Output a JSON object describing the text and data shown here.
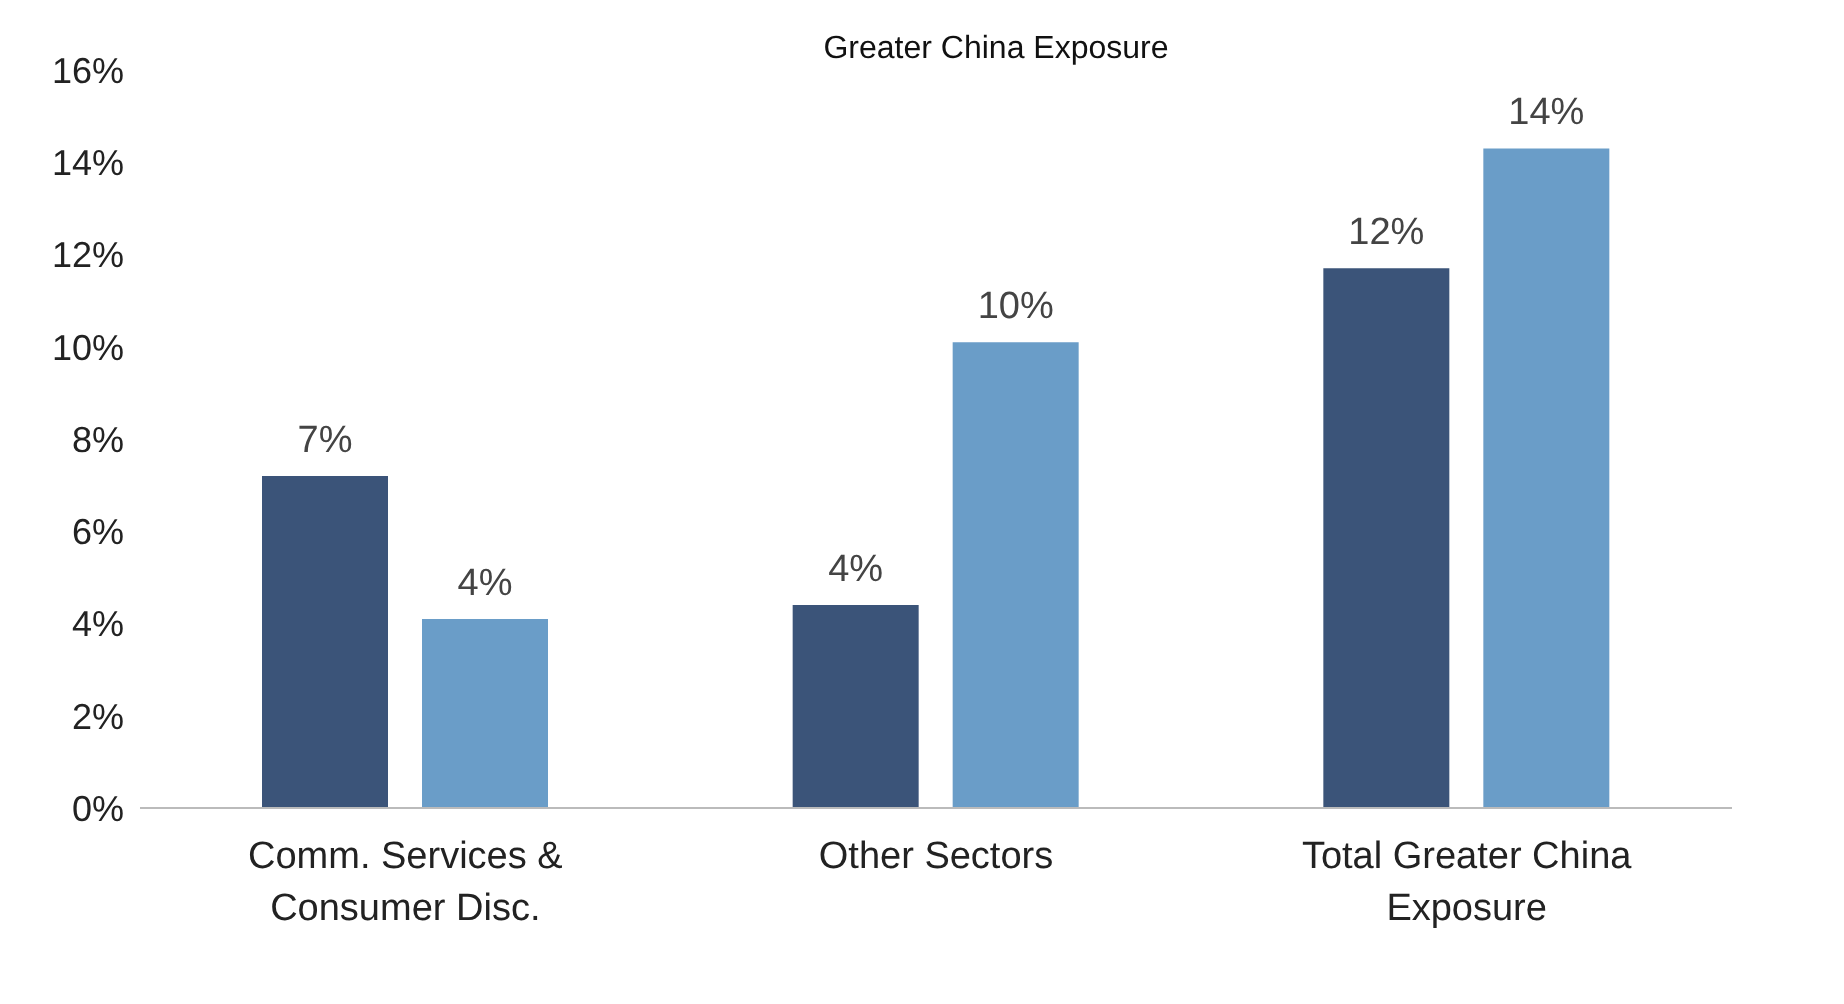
{
  "chart_data": {
    "type": "bar",
    "title": "Greater China Exposure",
    "categories": [
      "Comm. Services & Consumer Disc.",
      "Other Sectors",
      "Total Greater China Exposure"
    ],
    "series": [
      {
        "color": "#3b5479",
        "values": [
          7.2,
          4.4,
          11.7
        ],
        "value_labels": [
          "7%",
          "4%",
          "12%"
        ]
      },
      {
        "color": "#6a9dc8",
        "values": [
          4.1,
          10.1,
          14.3
        ],
        "value_labels": [
          "4%",
          "10%",
          "14%"
        ]
      }
    ],
    "ylim": [
      0,
      16
    ],
    "yticks": [
      {
        "value": 0,
        "label": "0%"
      },
      {
        "value": 2,
        "label": "2%"
      },
      {
        "value": 4,
        "label": "4%"
      },
      {
        "value": 6,
        "label": "6%"
      },
      {
        "value": 8,
        "label": "8%"
      },
      {
        "value": 10,
        "label": "10%"
      },
      {
        "value": 12,
        "label": "12%"
      },
      {
        "value": 14,
        "label": "14%"
      },
      {
        "value": 16,
        "label": "16%"
      }
    ],
    "grid": false,
    "legend": false
  }
}
